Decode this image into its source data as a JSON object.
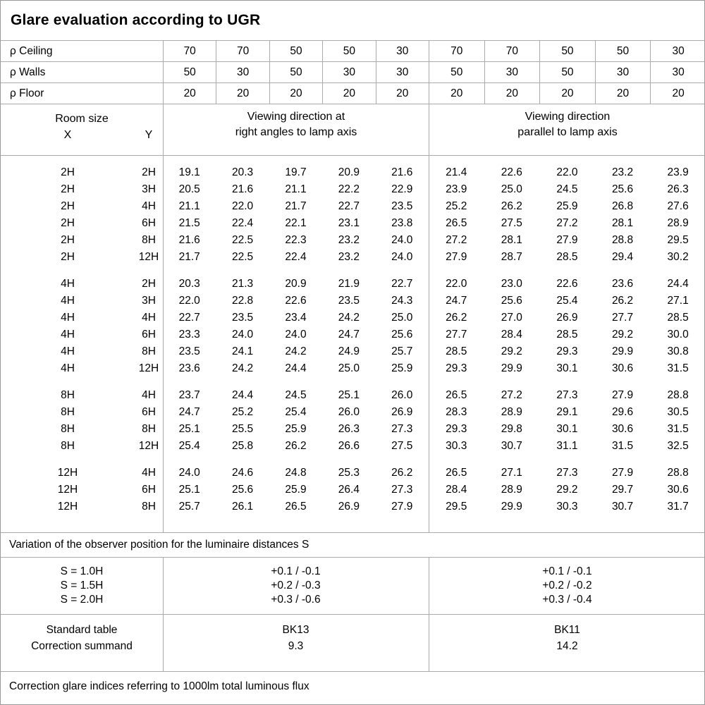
{
  "title": "Glare evaluation according to UGR",
  "reflectance": {
    "rows": [
      [
        "ρ Ceiling",
        "70",
        "70",
        "50",
        "50",
        "30",
        "70",
        "70",
        "50",
        "50",
        "30"
      ],
      [
        "ρ Walls",
        "50",
        "30",
        "50",
        "30",
        "30",
        "50",
        "30",
        "50",
        "30",
        "30"
      ],
      [
        "ρ Floor",
        "20",
        "20",
        "20",
        "20",
        "20",
        "20",
        "20",
        "20",
        "20",
        "20"
      ]
    ]
  },
  "room_size": {
    "label": "Room size",
    "x_label": "X",
    "y_label": "Y"
  },
  "column_groups": {
    "right_angles_line1": "Viewing direction at",
    "right_angles_line2": "right angles to lamp axis",
    "parallel_line1": "Viewing direction",
    "parallel_line2": "parallel to lamp axis"
  },
  "ugr_table": {
    "groups": [
      {
        "rows": [
          [
            "2H",
            "2H",
            "19.1",
            "20.3",
            "19.7",
            "20.9",
            "21.6",
            "21.4",
            "22.6",
            "22.0",
            "23.2",
            "23.9"
          ],
          [
            "2H",
            "3H",
            "20.5",
            "21.6",
            "21.1",
            "22.2",
            "22.9",
            "23.9",
            "25.0",
            "24.5",
            "25.6",
            "26.3"
          ],
          [
            "2H",
            "4H",
            "21.1",
            "22.0",
            "21.7",
            "22.7",
            "23.5",
            "25.2",
            "26.2",
            "25.9",
            "26.8",
            "27.6"
          ],
          [
            "2H",
            "6H",
            "21.5",
            "22.4",
            "22.1",
            "23.1",
            "23.8",
            "26.5",
            "27.5",
            "27.2",
            "28.1",
            "28.9"
          ],
          [
            "2H",
            "8H",
            "21.6",
            "22.5",
            "22.3",
            "23.2",
            "24.0",
            "27.2",
            "28.1",
            "27.9",
            "28.8",
            "29.5"
          ],
          [
            "2H",
            "12H",
            "21.7",
            "22.5",
            "22.4",
            "23.2",
            "24.0",
            "27.9",
            "28.7",
            "28.5",
            "29.4",
            "30.2"
          ]
        ]
      },
      {
        "rows": [
          [
            "4H",
            "2H",
            "20.3",
            "21.3",
            "20.9",
            "21.9",
            "22.7",
            "22.0",
            "23.0",
            "22.6",
            "23.6",
            "24.4"
          ],
          [
            "4H",
            "3H",
            "22.0",
            "22.8",
            "22.6",
            "23.5",
            "24.3",
            "24.7",
            "25.6",
            "25.4",
            "26.2",
            "27.1"
          ],
          [
            "4H",
            "4H",
            "22.7",
            "23.5",
            "23.4",
            "24.2",
            "25.0",
            "26.2",
            "27.0",
            "26.9",
            "27.7",
            "28.5"
          ],
          [
            "4H",
            "6H",
            "23.3",
            "24.0",
            "24.0",
            "24.7",
            "25.6",
            "27.7",
            "28.4",
            "28.5",
            "29.2",
            "30.0"
          ],
          [
            "4H",
            "8H",
            "23.5",
            "24.1",
            "24.2",
            "24.9",
            "25.7",
            "28.5",
            "29.2",
            "29.3",
            "29.9",
            "30.8"
          ],
          [
            "4H",
            "12H",
            "23.6",
            "24.2",
            "24.4",
            "25.0",
            "25.9",
            "29.3",
            "29.9",
            "30.1",
            "30.6",
            "31.5"
          ]
        ]
      },
      {
        "rows": [
          [
            "8H",
            "4H",
            "23.7",
            "24.4",
            "24.5",
            "25.1",
            "26.0",
            "26.5",
            "27.2",
            "27.3",
            "27.9",
            "28.8"
          ],
          [
            "8H",
            "6H",
            "24.7",
            "25.2",
            "25.4",
            "26.0",
            "26.9",
            "28.3",
            "28.9",
            "29.1",
            "29.6",
            "30.5"
          ],
          [
            "8H",
            "8H",
            "25.1",
            "25.5",
            "25.9",
            "26.3",
            "27.3",
            "29.3",
            "29.8",
            "30.1",
            "30.6",
            "31.5"
          ],
          [
            "8H",
            "12H",
            "25.4",
            "25.8",
            "26.2",
            "26.6",
            "27.5",
            "30.3",
            "30.7",
            "31.1",
            "31.5",
            "32.5"
          ]
        ]
      },
      {
        "rows": [
          [
            "12H",
            "4H",
            "24.0",
            "24.6",
            "24.8",
            "25.3",
            "26.2",
            "26.5",
            "27.1",
            "27.3",
            "27.9",
            "28.8"
          ],
          [
            "12H",
            "6H",
            "25.1",
            "25.6",
            "25.9",
            "26.4",
            "27.3",
            "28.4",
            "28.9",
            "29.2",
            "29.7",
            "30.6"
          ],
          [
            "12H",
            "8H",
            "25.7",
            "26.1",
            "26.5",
            "26.9",
            "27.9",
            "29.5",
            "29.9",
            "30.3",
            "30.7",
            "31.7"
          ]
        ]
      }
    ]
  },
  "variation_note": "Variation of the observer position for the luminaire distances S",
  "observer_variation": {
    "rows": [
      [
        "S = 1.0H",
        "+0.1 / -0.1",
        "+0.1 / -0.1"
      ],
      [
        "S = 1.5H",
        "+0.2 / -0.3",
        "+0.2 / -0.2"
      ],
      [
        "S = 2.0H",
        "+0.3 / -0.6",
        "+0.3 / -0.4"
      ]
    ]
  },
  "summary": {
    "rows": [
      [
        "Standard table",
        "BK13",
        "BK11"
      ],
      [
        "Correction summand",
        "9.3",
        "14.2"
      ]
    ]
  },
  "footer": "Correction glare indices referring to 1000lm total luminous flux"
}
